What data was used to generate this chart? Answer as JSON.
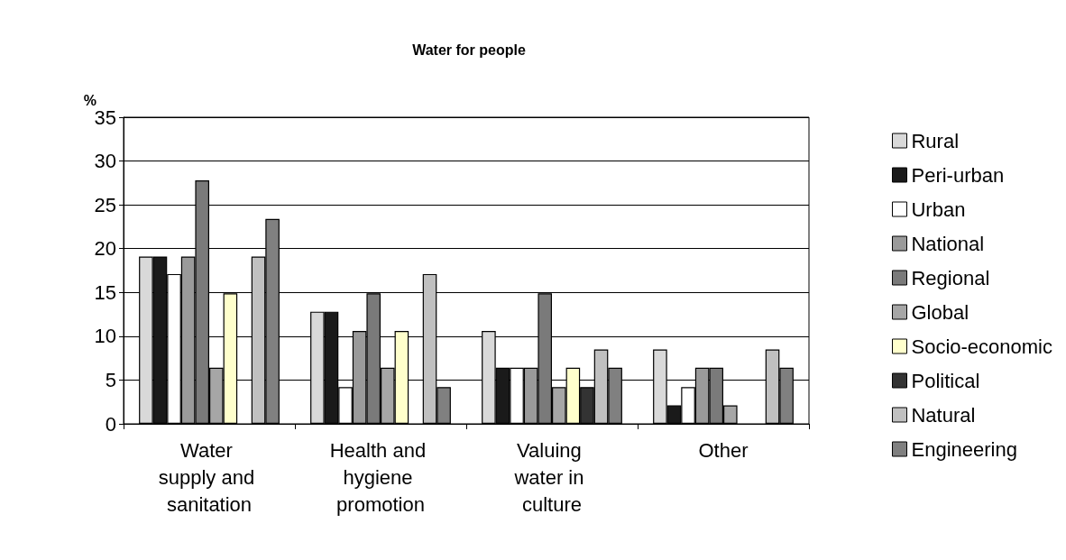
{
  "chart_data": {
    "type": "bar",
    "title": "Water for people",
    "ylabel": "%",
    "categories": [
      "Water supply and sanitation",
      "Health and hygiene promotion",
      "Valuing water in culture",
      "Other"
    ],
    "series": [
      {
        "name": "Rural",
        "color": "#d9d9d9",
        "values": [
          19.1,
          12.8,
          10.6,
          8.5
        ]
      },
      {
        "name": "Peri-urban",
        "color": "#1a1a1a",
        "values": [
          19.1,
          12.8,
          6.4,
          2.1
        ]
      },
      {
        "name": "Urban",
        "color": "#ffffff",
        "values": [
          17.1,
          4.2,
          6.4,
          4.2
        ]
      },
      {
        "name": "National",
        "color": "#9a9a9a",
        "values": [
          19.1,
          10.6,
          6.4,
          6.4
        ]
      },
      {
        "name": "Regional",
        "color": "#7a7a7a",
        "values": [
          27.8,
          14.9,
          14.9,
          6.4
        ]
      },
      {
        "name": "Global",
        "color": "#a6a6a6",
        "values": [
          6.4,
          6.4,
          4.2,
          2.1
        ]
      },
      {
        "name": "Socio-economic",
        "color": "#ffffcc",
        "values": [
          14.9,
          10.6,
          6.4,
          null
        ]
      },
      {
        "name": "Political",
        "color": "#333333",
        "values": [
          null,
          null,
          4.2,
          null
        ]
      },
      {
        "name": "Natural",
        "color": "#c0c0c0",
        "values": [
          19.1,
          17.1,
          8.5,
          8.5
        ]
      },
      {
        "name": "Engineering",
        "color": "#808080",
        "values": [
          23.4,
          4.2,
          6.4,
          6.4
        ]
      }
    ],
    "ylim": [
      0,
      35
    ],
    "yticks": [
      0,
      5,
      10,
      15,
      20,
      25,
      30,
      35
    ],
    "grid": "y",
    "legend": "right"
  }
}
